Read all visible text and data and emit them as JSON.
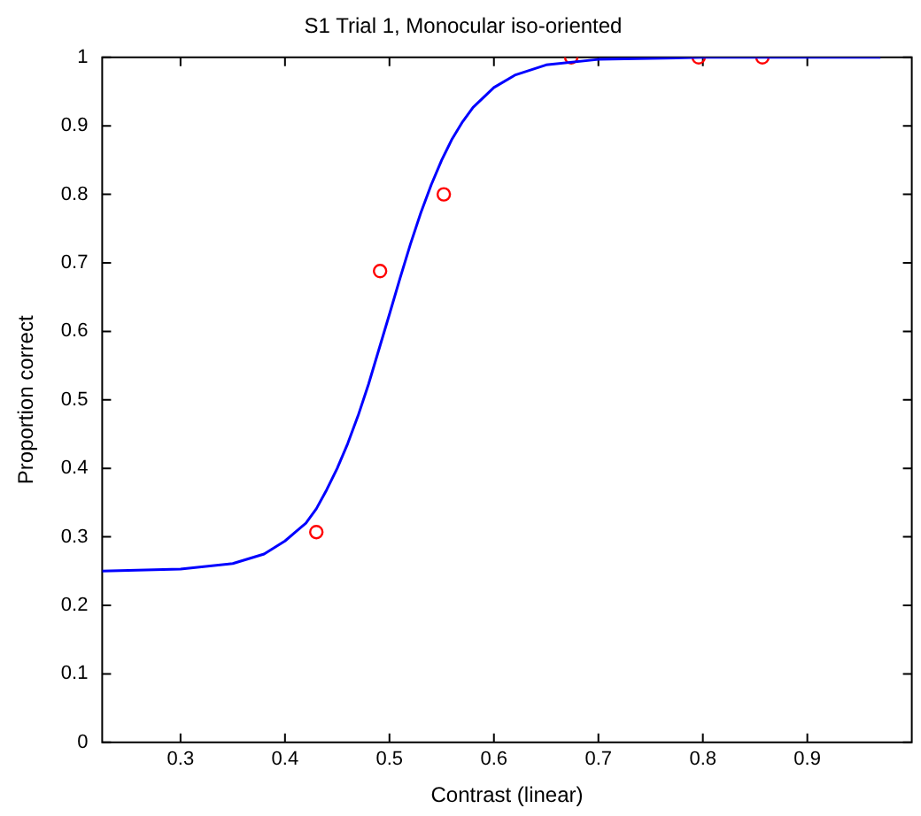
{
  "chart_data": {
    "type": "scatter",
    "title": "S1 Trial 1, Monocular iso-oriented",
    "xlabel": "Contrast (linear)",
    "ylabel": "Proportion correct",
    "xlim": [
      0.225,
      1
    ],
    "ylim": [
      0,
      1
    ],
    "xticks": [
      0.3,
      0.4,
      0.5,
      0.6,
      0.7,
      0.8,
      0.9
    ],
    "yticks": [
      0,
      0.1,
      0.2,
      0.3,
      0.4,
      0.5,
      0.6,
      0.7,
      0.8,
      0.9,
      1
    ],
    "grid": false,
    "legend": false,
    "series": [
      {
        "type": "line",
        "color": "#0000ff",
        "marker": "none",
        "line_style": "solid",
        "x": [
          0.225,
          0.25,
          0.3,
          0.35,
          0.38,
          0.4,
          0.41,
          0.42,
          0.43,
          0.44,
          0.45,
          0.46,
          0.47,
          0.48,
          0.49,
          0.5,
          0.51,
          0.52,
          0.53,
          0.54,
          0.55,
          0.56,
          0.57,
          0.58,
          0.6,
          0.62,
          0.65,
          0.7,
          0.8,
          0.97
        ],
        "values": [
          0.25,
          0.251,
          0.253,
          0.261,
          0.275,
          0.294,
          0.307,
          0.32,
          0.341,
          0.369,
          0.4,
          0.436,
          0.477,
          0.523,
          0.574,
          0.625,
          0.677,
          0.727,
          0.773,
          0.814,
          0.85,
          0.881,
          0.906,
          0.927,
          0.956,
          0.974,
          0.989,
          0.997,
          1,
          1
        ]
      },
      {
        "type": "scatter",
        "color": "#ff0000",
        "marker": "circle",
        "x": [
          0.43,
          0.491,
          0.552,
          0.674,
          0.796,
          0.857
        ],
        "values": [
          0.307,
          0.688,
          0.8,
          1,
          1,
          1
        ]
      }
    ]
  }
}
